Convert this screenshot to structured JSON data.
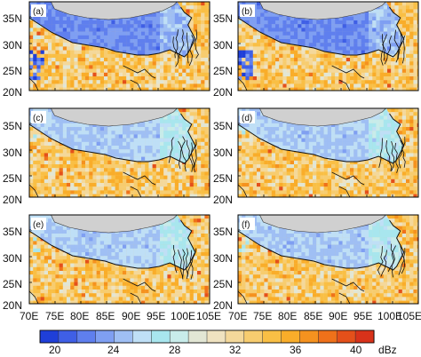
{
  "figure": {
    "panels": [
      {
        "label": "(a)"
      },
      {
        "label": "(b)"
      },
      {
        "label": "(c)"
      },
      {
        "label": "(d)"
      },
      {
        "label": "(e)"
      },
      {
        "label": "(f)"
      }
    ],
    "lat_labels": [
      "35N",
      "30N",
      "25N",
      "20N"
    ],
    "lon_labels": [
      "70E",
      "75E",
      "80E",
      "85E",
      "90E",
      "95E",
      "100E",
      "105E"
    ],
    "colorbar": {
      "tick_labels": [
        "20",
        "24",
        "28",
        "32",
        "36",
        "40"
      ],
      "unit": "dBz",
      "colors": [
        "#1f3fd8",
        "#3f5fe6",
        "#5f7fee",
        "#7f9ff2",
        "#9fbff4",
        "#bfdff6",
        "#a8e6ee",
        "#c8ecea",
        "#e2e6d4",
        "#efe2c0",
        "#f4d89a",
        "#f7cc6f",
        "#f9bf45",
        "#f9ad2a",
        "#f5921f",
        "#ef711a",
        "#e4501a",
        "#d8321a"
      ]
    }
  },
  "chart_data": {
    "type": "heatmap",
    "description_fields": "gridded reflectivity maps, six panels",
    "lon_range": [
      70,
      105
    ],
    "lat_range": [
      20,
      38
    ],
    "value_range": [
      20,
      40
    ],
    "value_unit": "dBz",
    "panels": [
      "(a)",
      "(b)",
      "(c)",
      "(d)",
      "(e)",
      "(f)"
    ],
    "colorbar_ticks": [
      20,
      24,
      28,
      32,
      36,
      40
    ]
  }
}
